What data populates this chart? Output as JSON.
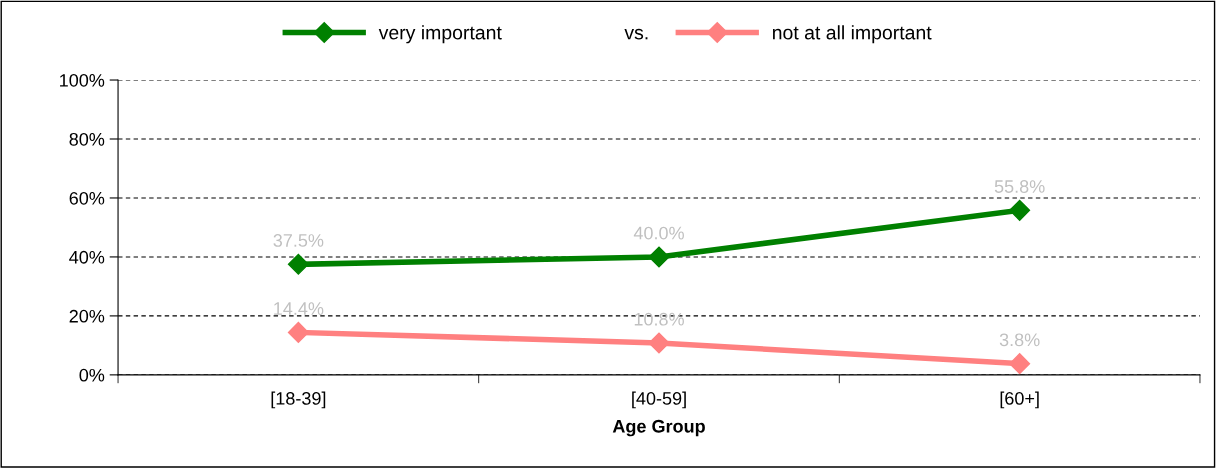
{
  "chart_data": {
    "type": "line",
    "xlabel": "Age Group",
    "categories": [
      "[18-39]",
      "[40-59]",
      "[60+]"
    ],
    "series": [
      {
        "name": "very important",
        "color": "#008000",
        "values": [
          37.5,
          40.0,
          55.8
        ],
        "value_labels": [
          "37.5%",
          "40.0%",
          "55.8%"
        ]
      },
      {
        "name": "not at all important",
        "color": "#ff8080",
        "values": [
          14.4,
          10.8,
          3.8
        ],
        "value_labels": [
          "14.4%",
          "10.8%",
          "3.8%"
        ]
      }
    ],
    "annotations": [
      "vs."
    ],
    "ylim": [
      0,
      100
    ],
    "yticks": [
      {
        "value": 0,
        "label": "0%"
      },
      {
        "value": 20,
        "label": "20%"
      },
      {
        "value": 40,
        "label": "40%"
      },
      {
        "value": 60,
        "label": "60%"
      },
      {
        "value": 80,
        "label": "80%"
      },
      {
        "value": 100,
        "label": "100%"
      }
    ],
    "grid": "y",
    "legend": "top",
    "marker": "diamond",
    "line_style": "solid"
  }
}
